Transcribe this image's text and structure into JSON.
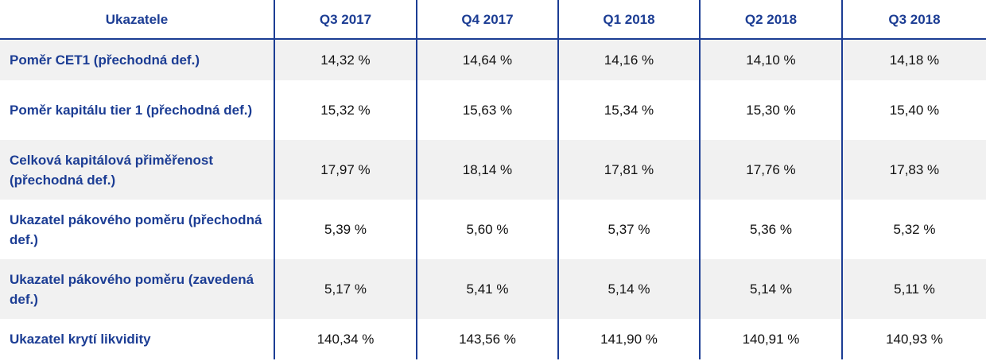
{
  "chart_data": {
    "type": "table",
    "columns": [
      "Ukazatele",
      "Q3 2017",
      "Q4 2017",
      "Q1 2018",
      "Q2 2018",
      "Q3 2018"
    ],
    "rows": [
      {
        "label": "Poměr CET1 (přechodná def.)",
        "values": [
          "14,32 %",
          "14,64 %",
          "14,16 %",
          "14,10 %",
          "14,18 %"
        ]
      },
      {
        "label": "Poměr kapitálu tier 1 (přechodná def.)",
        "values": [
          "15,32 %",
          "15,63 %",
          "15,34 %",
          "15,30 %",
          "15,40 %"
        ]
      },
      {
        "label": "Celková kapitálová přiměřenost (přechodná def.)",
        "values": [
          "17,97 %",
          "18,14 %",
          "17,81 %",
          "17,76 %",
          "17,83 %"
        ]
      },
      {
        "label": "Ukazatel pákového poměru (přechodná def.)",
        "values": [
          "5,39 %",
          "5,60 %",
          "5,37 %",
          "5,36 %",
          "5,32 %"
        ]
      },
      {
        "label": "Ukazatel pákového poměru (zavedená def.)",
        "values": [
          "5,17 %",
          "5,41 %",
          "5,14 %",
          "5,14 %",
          "5,11 %"
        ]
      },
      {
        "label": "Ukazatel krytí likvidity",
        "values": [
          "140,34 %",
          "143,56 %",
          "141,90 %",
          "140,91 %",
          "140,93 %"
        ]
      }
    ]
  },
  "colors": {
    "header_text": "#1c3d94",
    "label_text": "#1c3d94",
    "rule": "#1c3d94",
    "shaded_row": "#f1f1f1",
    "value_text": "#111111"
  }
}
